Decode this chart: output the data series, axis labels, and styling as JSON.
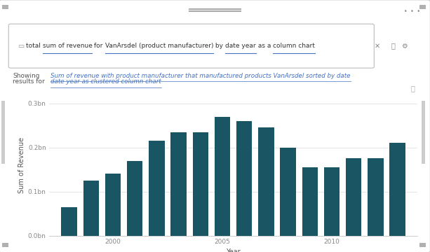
{
  "years": [
    1998,
    1999,
    2000,
    2001,
    2002,
    2003,
    2004,
    2005,
    2006,
    2007,
    2008,
    2009,
    2010,
    2011,
    2012,
    2013
  ],
  "values": [
    0.065,
    0.125,
    0.14,
    0.17,
    0.215,
    0.235,
    0.235,
    0.27,
    0.26,
    0.245,
    0.2,
    0.155,
    0.155,
    0.175,
    0.175,
    0.21
  ],
  "bar_color": "#1a5563",
  "bg_color": "#ffffff",
  "ylabel": "Sum of Revenue",
  "xlabel": "Year",
  "yticks": [
    0.0,
    0.1,
    0.2,
    0.3
  ],
  "ytick_labels": [
    "0.0bn",
    "0.1bn",
    "0.2bn",
    "0.3bn"
  ],
  "xtick_positions": [
    2000,
    2005,
    2010
  ],
  "xtick_labels": [
    "2000",
    "2005",
    "2010"
  ],
  "result_label_line1": "Sum of revenue with product manufacturer that manufactured products VanArsdel sorted by date",
  "result_label_line2": "date year as clustered column chart",
  "grid_color": "#e0e0e0",
  "axis_label_color": "#555555",
  "tick_color": "#888888",
  "underline_color": "#4472c4",
  "border_color": "#cccccc",
  "showing_color": "#555555",
  "result_text_color": "#4472c4"
}
